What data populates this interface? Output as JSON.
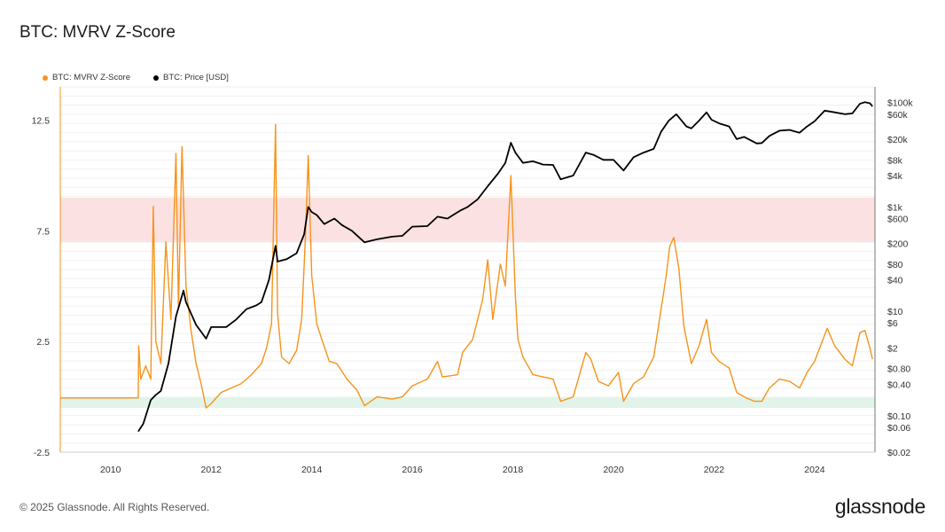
{
  "title": "BTC: MVRV Z-Score",
  "legend": [
    {
      "label": "BTC: MVRV Z-Score",
      "color": "#f7931a"
    },
    {
      "label": "BTC: Price [USD]",
      "color": "#000000"
    }
  ],
  "footer": "© 2025 Glassnode. All Rights Reserved.",
  "brand": "glassnode",
  "chart_data": {
    "type": "line",
    "title": "BTC: MVRV Z-Score",
    "x_range": [
      2009.0,
      2025.2
    ],
    "x_ticks": [
      "2010",
      "2012",
      "2014",
      "2016",
      "2018",
      "2020",
      "2022",
      "2024"
    ],
    "left_axis": {
      "ylim": [
        -2.5,
        14.0
      ],
      "ticks": [
        -2.5,
        2.5,
        7.5,
        12.5
      ]
    },
    "right_axis": {
      "scale": "log",
      "ylim": [
        0.02,
        200000
      ],
      "ticks": [
        "$100k",
        "$60k",
        "$20k",
        "$8k",
        "$4k",
        "$1k",
        "$600",
        "$200",
        "$80",
        "$40",
        "$10",
        "$6",
        "$2",
        "$0.80",
        "$0.40",
        "$0.10",
        "$0.06",
        "$0.02"
      ]
    },
    "bands": [
      {
        "name": "overvalued",
        "from": 7.0,
        "to": 9.0,
        "color": "#fbe1e1"
      },
      {
        "name": "undervalued",
        "from": -0.5,
        "to": 0.0,
        "color": "#e2f4ea"
      }
    ],
    "series": [
      {
        "name": "BTC: MVRV Z-Score",
        "color": "#f7931a",
        "axis": "left",
        "points": [
          [
            2009.0,
            -0.05
          ],
          [
            2010.55,
            -0.05
          ],
          [
            2010.56,
            2.3
          ],
          [
            2010.6,
            0.8
          ],
          [
            2010.7,
            1.4
          ],
          [
            2010.8,
            0.8
          ],
          [
            2010.85,
            8.6
          ],
          [
            2010.9,
            2.5
          ],
          [
            2011.0,
            1.5
          ],
          [
            2011.1,
            7.0
          ],
          [
            2011.2,
            3.5
          ],
          [
            2011.3,
            11.0
          ],
          [
            2011.35,
            4.0
          ],
          [
            2011.42,
            11.3
          ],
          [
            2011.5,
            5.0
          ],
          [
            2011.6,
            3.0
          ],
          [
            2011.7,
            1.5
          ],
          [
            2011.8,
            0.6
          ],
          [
            2011.9,
            -0.5
          ],
          [
            2012.0,
            -0.3
          ],
          [
            2012.2,
            0.2
          ],
          [
            2012.4,
            0.4
          ],
          [
            2012.6,
            0.6
          ],
          [
            2012.8,
            1.0
          ],
          [
            2013.0,
            1.5
          ],
          [
            2013.1,
            2.2
          ],
          [
            2013.2,
            3.3
          ],
          [
            2013.28,
            12.3
          ],
          [
            2013.32,
            3.8
          ],
          [
            2013.4,
            1.8
          ],
          [
            2013.55,
            1.5
          ],
          [
            2013.7,
            2.1
          ],
          [
            2013.8,
            3.5
          ],
          [
            2013.87,
            7.0
          ],
          [
            2013.93,
            10.9
          ],
          [
            2014.0,
            5.5
          ],
          [
            2014.1,
            3.3
          ],
          [
            2014.2,
            2.6
          ],
          [
            2014.35,
            1.6
          ],
          [
            2014.5,
            1.5
          ],
          [
            2014.7,
            0.8
          ],
          [
            2014.9,
            0.3
          ],
          [
            2015.05,
            -0.4
          ],
          [
            2015.3,
            0.0
          ],
          [
            2015.6,
            -0.1
          ],
          [
            2015.8,
            0.0
          ],
          [
            2016.0,
            0.5
          ],
          [
            2016.3,
            0.8
          ],
          [
            2016.5,
            1.6
          ],
          [
            2016.6,
            0.9
          ],
          [
            2016.9,
            1.0
          ],
          [
            2017.0,
            2.0
          ],
          [
            2017.2,
            2.6
          ],
          [
            2017.4,
            4.4
          ],
          [
            2017.5,
            6.2
          ],
          [
            2017.6,
            3.5
          ],
          [
            2017.75,
            6.0
          ],
          [
            2017.85,
            5.0
          ],
          [
            2017.96,
            10.0
          ],
          [
            2018.05,
            4.5
          ],
          [
            2018.1,
            2.6
          ],
          [
            2018.2,
            1.8
          ],
          [
            2018.4,
            1.0
          ],
          [
            2018.6,
            0.9
          ],
          [
            2018.8,
            0.8
          ],
          [
            2018.95,
            -0.2
          ],
          [
            2019.2,
            0.0
          ],
          [
            2019.45,
            2.0
          ],
          [
            2019.55,
            1.7
          ],
          [
            2019.7,
            0.7
          ],
          [
            2019.9,
            0.5
          ],
          [
            2020.1,
            1.1
          ],
          [
            2020.2,
            -0.2
          ],
          [
            2020.4,
            0.6
          ],
          [
            2020.6,
            0.9
          ],
          [
            2020.8,
            1.8
          ],
          [
            2020.95,
            4.0
          ],
          [
            2021.05,
            5.5
          ],
          [
            2021.12,
            6.8
          ],
          [
            2021.2,
            7.2
          ],
          [
            2021.3,
            5.8
          ],
          [
            2021.4,
            3.2
          ],
          [
            2021.55,
            1.5
          ],
          [
            2021.7,
            2.3
          ],
          [
            2021.85,
            3.5
          ],
          [
            2021.95,
            2.0
          ],
          [
            2022.1,
            1.6
          ],
          [
            2022.3,
            1.3
          ],
          [
            2022.45,
            0.2
          ],
          [
            2022.6,
            0.0
          ],
          [
            2022.8,
            -0.2
          ],
          [
            2022.95,
            -0.2
          ],
          [
            2023.1,
            0.4
          ],
          [
            2023.3,
            0.8
          ],
          [
            2023.5,
            0.7
          ],
          [
            2023.7,
            0.4
          ],
          [
            2023.85,
            1.1
          ],
          [
            2024.0,
            1.6
          ],
          [
            2024.15,
            2.5
          ],
          [
            2024.25,
            3.1
          ],
          [
            2024.4,
            2.3
          ],
          [
            2024.6,
            1.7
          ],
          [
            2024.75,
            1.4
          ],
          [
            2024.9,
            2.9
          ],
          [
            2025.0,
            3.0
          ],
          [
            2025.1,
            2.2
          ],
          [
            2025.15,
            1.7
          ]
        ]
      },
      {
        "name": "BTC: Price [USD]",
        "color": "#000000",
        "axis": "right",
        "points": [
          [
            2010.55,
            0.05
          ],
          [
            2010.65,
            0.07
          ],
          [
            2010.8,
            0.2
          ],
          [
            2010.9,
            0.25
          ],
          [
            2011.0,
            0.3
          ],
          [
            2011.15,
            1.0
          ],
          [
            2011.3,
            8.0
          ],
          [
            2011.45,
            25
          ],
          [
            2011.5,
            15
          ],
          [
            2011.7,
            5.5
          ],
          [
            2011.9,
            3.0
          ],
          [
            2012.0,
            5.0
          ],
          [
            2012.3,
            5.0
          ],
          [
            2012.5,
            7.0
          ],
          [
            2012.7,
            11
          ],
          [
            2012.9,
            13
          ],
          [
            2013.0,
            15
          ],
          [
            2013.15,
            40
          ],
          [
            2013.28,
            180
          ],
          [
            2013.32,
            90
          ],
          [
            2013.5,
            100
          ],
          [
            2013.7,
            130
          ],
          [
            2013.85,
            300
          ],
          [
            2013.93,
            1000
          ],
          [
            2014.0,
            800
          ],
          [
            2014.1,
            700
          ],
          [
            2014.25,
            470
          ],
          [
            2014.45,
            600
          ],
          [
            2014.6,
            450
          ],
          [
            2014.8,
            350
          ],
          [
            2015.05,
            210
          ],
          [
            2015.3,
            240
          ],
          [
            2015.6,
            270
          ],
          [
            2015.8,
            280
          ],
          [
            2016.0,
            420
          ],
          [
            2016.3,
            430
          ],
          [
            2016.5,
            650
          ],
          [
            2016.7,
            600
          ],
          [
            2016.95,
            850
          ],
          [
            2017.1,
            1000
          ],
          [
            2017.3,
            1400
          ],
          [
            2017.5,
            2500
          ],
          [
            2017.7,
            4300
          ],
          [
            2017.85,
            7000
          ],
          [
            2017.96,
            17000
          ],
          [
            2018.05,
            11000
          ],
          [
            2018.2,
            7000
          ],
          [
            2018.4,
            7500
          ],
          [
            2018.6,
            6500
          ],
          [
            2018.8,
            6400
          ],
          [
            2018.95,
            3400
          ],
          [
            2019.2,
            4000
          ],
          [
            2019.45,
            11000
          ],
          [
            2019.6,
            10000
          ],
          [
            2019.8,
            8000
          ],
          [
            2020.0,
            8000
          ],
          [
            2020.2,
            5000
          ],
          [
            2020.4,
            9000
          ],
          [
            2020.6,
            11000
          ],
          [
            2020.8,
            13000
          ],
          [
            2020.95,
            28000
          ],
          [
            2021.1,
            45000
          ],
          [
            2021.25,
            60000
          ],
          [
            2021.45,
            35000
          ],
          [
            2021.55,
            32000
          ],
          [
            2021.7,
            45000
          ],
          [
            2021.85,
            65000
          ],
          [
            2021.95,
            47000
          ],
          [
            2022.1,
            40000
          ],
          [
            2022.3,
            35000
          ],
          [
            2022.45,
            20000
          ],
          [
            2022.6,
            22000
          ],
          [
            2022.85,
            16500
          ],
          [
            2022.95,
            16800
          ],
          [
            2023.1,
            23000
          ],
          [
            2023.3,
            29000
          ],
          [
            2023.5,
            30000
          ],
          [
            2023.7,
            26500
          ],
          [
            2023.85,
            35000
          ],
          [
            2024.0,
            44000
          ],
          [
            2024.2,
            70000
          ],
          [
            2024.4,
            65000
          ],
          [
            2024.6,
            60000
          ],
          [
            2024.75,
            62000
          ],
          [
            2024.9,
            95000
          ],
          [
            2025.0,
            102000
          ],
          [
            2025.1,
            97000
          ],
          [
            2025.15,
            85000
          ]
        ]
      }
    ]
  }
}
